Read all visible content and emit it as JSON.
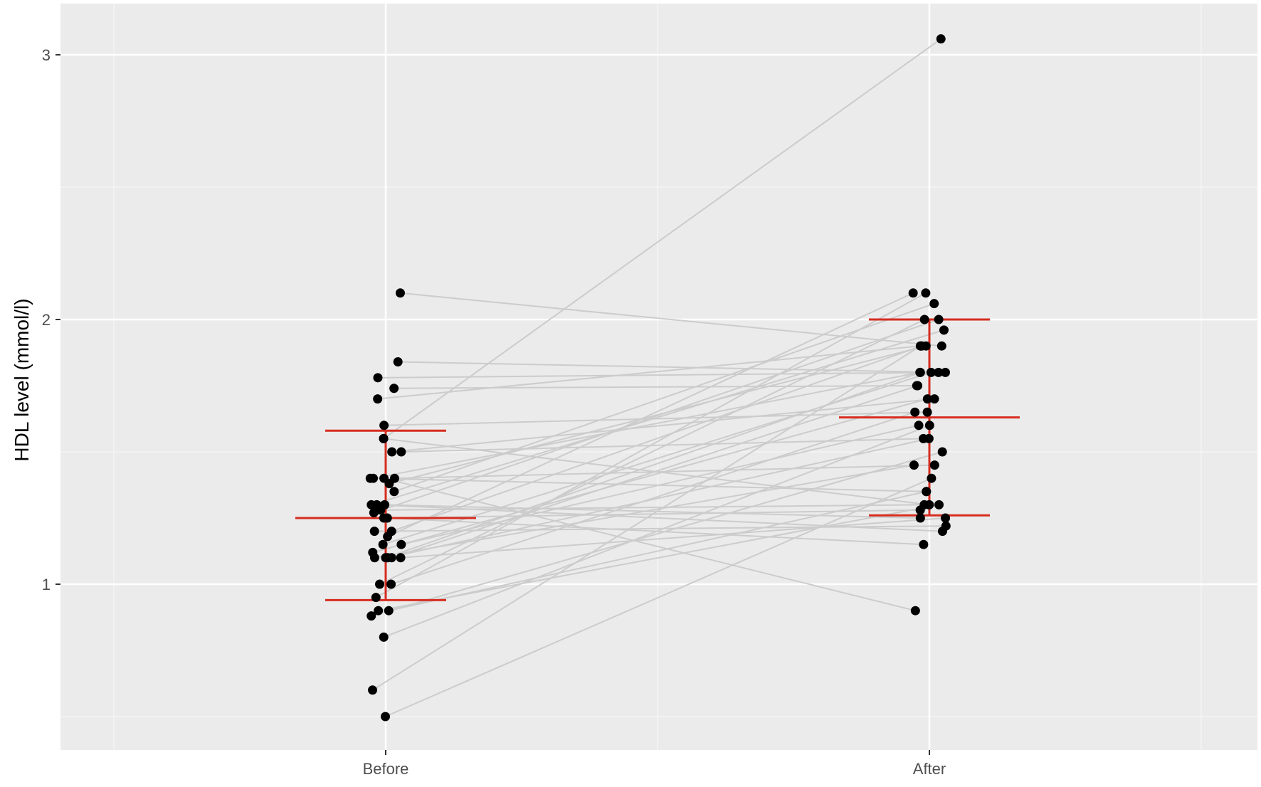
{
  "chart_data": {
    "type": "scatter",
    "title": "",
    "xlabel": "",
    "ylabel": "HDL level (mmol/l)",
    "categories": [
      "Before",
      "After"
    ],
    "ylim": [
      0.38,
      3.2
    ],
    "yticks": [
      1,
      2,
      3
    ],
    "grid": true,
    "legend": "none",
    "paired_lines": true,
    "colors": {
      "panel": "#ebebeb",
      "grid": "#ffffff",
      "points": "#000000",
      "pair_lines": "#cccccc",
      "summary": "#d62d20"
    },
    "summary": {
      "Before": {
        "mean": 1.25,
        "sd_low": 0.94,
        "sd_high": 1.58
      },
      "After": {
        "mean": 1.63,
        "sd_low": 1.26,
        "sd_high": 2.0
      }
    },
    "pairs": [
      [
        0.5,
        1.4
      ],
      [
        0.6,
        1.9
      ],
      [
        0.8,
        1.6
      ],
      [
        0.88,
        1.5
      ],
      [
        0.9,
        1.35
      ],
      [
        0.9,
        1.3
      ],
      [
        1.0,
        1.65
      ],
      [
        1.1,
        1.8
      ],
      [
        1.1,
        1.75
      ],
      [
        1.1,
        1.55
      ],
      [
        1.1,
        1.45
      ],
      [
        1.1,
        1.25
      ],
      [
        1.12,
        1.7
      ],
      [
        1.15,
        1.6
      ],
      [
        1.15,
        1.8
      ],
      [
        1.2,
        1.9
      ],
      [
        1.2,
        1.22
      ],
      [
        1.25,
        1.28
      ],
      [
        1.25,
        1.15
      ],
      [
        1.27,
        2.0
      ],
      [
        1.28,
        1.3
      ],
      [
        1.3,
        1.96
      ],
      [
        1.3,
        1.2
      ],
      [
        1.3,
        1.25
      ],
      [
        1.38,
        1.9
      ],
      [
        1.4,
        1.45
      ],
      [
        1.4,
        1.8
      ],
      [
        1.4,
        0.9
      ],
      [
        1.4,
        1.35
      ],
      [
        1.5,
        1.7
      ],
      [
        1.5,
        1.55
      ],
      [
        1.55,
        1.3
      ],
      [
        1.55,
        3.06
      ],
      [
        1.6,
        1.65
      ],
      [
        1.7,
        1.9
      ],
      [
        1.74,
        1.75
      ],
      [
        1.78,
        1.8
      ],
      [
        1.84,
        1.8
      ],
      [
        2.1,
        1.9
      ],
      [
        1.35,
        2.06
      ],
      [
        1.18,
        2.1
      ],
      [
        1.0,
        2.0
      ],
      [
        0.95,
        2.1
      ]
    ]
  }
}
